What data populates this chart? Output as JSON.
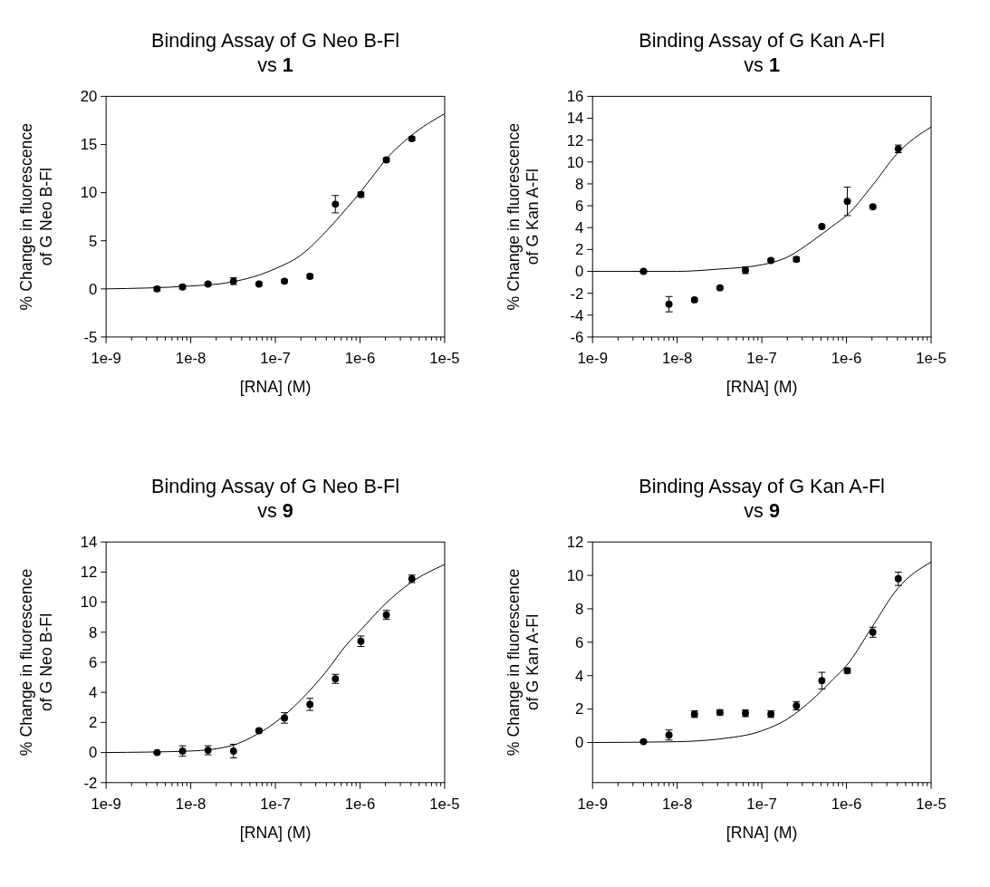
{
  "chart_data": [
    {
      "type": "scatter",
      "title": "Binding Assay of G Neo B-Fl\nvs 1",
      "xlabel": "[RNA] (M)",
      "ylabel": "% Change in fluorescence\nof G Neo B-Fl",
      "log": "x",
      "grid": false,
      "marker": "circle",
      "xlim": [
        1e-09,
        1e-05
      ],
      "ylim": [
        -5,
        20
      ],
      "yticks": [
        -5,
        0,
        5,
        10,
        15,
        20
      ],
      "xticks": [
        {
          "value": 1e-09,
          "label": "1e-9"
        },
        {
          "value": 2e-09,
          "label": null
        },
        {
          "value": 3e-09,
          "label": null
        },
        {
          "value": 4e-09,
          "label": null
        },
        {
          "value": 5e-09,
          "label": null
        },
        {
          "value": 6e-09,
          "label": null
        },
        {
          "value": 7e-09,
          "label": null
        },
        {
          "value": 8e-09,
          "label": null
        },
        {
          "value": 9e-09,
          "label": null
        },
        {
          "value": 1e-08,
          "label": "1e-8"
        },
        {
          "value": 2e-08,
          "label": null
        },
        {
          "value": 3e-08,
          "label": null
        },
        {
          "value": 4e-08,
          "label": null
        },
        {
          "value": 5e-08,
          "label": null
        },
        {
          "value": 6e-08,
          "label": null
        },
        {
          "value": 7e-08,
          "label": null
        },
        {
          "value": 8e-08,
          "label": null
        },
        {
          "value": 9e-08,
          "label": null
        },
        {
          "value": 1e-07,
          "label": "1e-7"
        },
        {
          "value": 2e-07,
          "label": null
        },
        {
          "value": 3e-07,
          "label": null
        },
        {
          "value": 4e-07,
          "label": null
        },
        {
          "value": 5e-07,
          "label": null
        },
        {
          "value": 6e-07,
          "label": null
        },
        {
          "value": 7e-07,
          "label": null
        },
        {
          "value": 8e-07,
          "label": null
        },
        {
          "value": 9e-07,
          "label": null
        },
        {
          "value": 1e-06,
          "label": "1e-6"
        },
        {
          "value": 2e-06,
          "label": null
        },
        {
          "value": 3e-06,
          "label": null
        },
        {
          "value": 4e-06,
          "label": null
        },
        {
          "value": 5e-06,
          "label": null
        },
        {
          "value": 6e-06,
          "label": null
        },
        {
          "value": 7e-06,
          "label": null
        },
        {
          "value": 8e-06,
          "label": null
        },
        {
          "value": 9e-06,
          "label": null
        },
        {
          "value": 1e-05,
          "label": "1e-5"
        }
      ],
      "series": [
        {
          "type": "scatter",
          "color": "#000000",
          "x": [
            4e-09,
            8e-09,
            1.6e-08,
            3.2e-08,
            6.4e-08,
            1.28e-07,
            2.56e-07,
            5.12e-07,
            1.024e-06,
            2.048e-06,
            4.096e-06
          ],
          "values": [
            0,
            0.2,
            0.5,
            0.8,
            0.5,
            0.8,
            1.3,
            8.8,
            9.8,
            13.4,
            15.6
          ],
          "errors": [
            0.2,
            0.2,
            0.15,
            0.35,
            0.15,
            0.15,
            0.2,
            0.9,
            0.25,
            0.2,
            0.2
          ]
        },
        {
          "type": "line",
          "color": "#000000",
          "marker": "none",
          "x": [
            1e-09,
            1e-08,
            3e-08,
            1e-07,
            2e-07,
            4e-07,
            7e-07,
            1e-06,
            1.5e-06,
            2e-06,
            4e-06,
            1e-05
          ],
          "values": [
            0,
            0.3,
            0.7,
            2.1,
            3.5,
            6.0,
            8.4,
            10,
            12,
            13.4,
            15.9,
            18.2
          ]
        }
      ]
    },
    {
      "type": "scatter",
      "title": "Binding Assay of G Kan A-Fl\nvs 1",
      "xlabel": "[RNA] (M)",
      "ylabel": "% Change in fluorescence\nof G Kan A-Fl",
      "log": "x",
      "grid": false,
      "marker": "circle",
      "xlim": [
        1e-09,
        1e-05
      ],
      "ylim": [
        -6,
        16
      ],
      "yticks": [
        -6,
        -4,
        -2,
        0,
        2,
        4,
        6,
        8,
        10,
        12,
        14,
        16
      ],
      "xticks": [
        {
          "value": 1e-09,
          "label": "1e-9"
        },
        {
          "value": 2e-09,
          "label": null
        },
        {
          "value": 3e-09,
          "label": null
        },
        {
          "value": 4e-09,
          "label": null
        },
        {
          "value": 5e-09,
          "label": null
        },
        {
          "value": 6e-09,
          "label": null
        },
        {
          "value": 7e-09,
          "label": null
        },
        {
          "value": 8e-09,
          "label": null
        },
        {
          "value": 9e-09,
          "label": null
        },
        {
          "value": 1e-08,
          "label": "1e-8"
        },
        {
          "value": 2e-08,
          "label": null
        },
        {
          "value": 3e-08,
          "label": null
        },
        {
          "value": 4e-08,
          "label": null
        },
        {
          "value": 5e-08,
          "label": null
        },
        {
          "value": 6e-08,
          "label": null
        },
        {
          "value": 7e-08,
          "label": null
        },
        {
          "value": 8e-08,
          "label": null
        },
        {
          "value": 9e-08,
          "label": null
        },
        {
          "value": 1e-07,
          "label": "1e-7"
        },
        {
          "value": 2e-07,
          "label": null
        },
        {
          "value": 3e-07,
          "label": null
        },
        {
          "value": 4e-07,
          "label": null
        },
        {
          "value": 5e-07,
          "label": null
        },
        {
          "value": 6e-07,
          "label": null
        },
        {
          "value": 7e-07,
          "label": null
        },
        {
          "value": 8e-07,
          "label": null
        },
        {
          "value": 9e-07,
          "label": null
        },
        {
          "value": 1e-06,
          "label": "1e-6"
        },
        {
          "value": 2e-06,
          "label": null
        },
        {
          "value": 3e-06,
          "label": null
        },
        {
          "value": 4e-06,
          "label": null
        },
        {
          "value": 5e-06,
          "label": null
        },
        {
          "value": 6e-06,
          "label": null
        },
        {
          "value": 7e-06,
          "label": null
        },
        {
          "value": 8e-06,
          "label": null
        },
        {
          "value": 9e-06,
          "label": null
        },
        {
          "value": 1e-05,
          "label": "1e-5"
        }
      ],
      "series": [
        {
          "type": "scatter",
          "color": "#000000",
          "x": [
            4e-09,
            8e-09,
            1.6e-08,
            3.2e-08,
            6.4e-08,
            1.28e-07,
            2.56e-07,
            5.12e-07,
            1.024e-06,
            2.048e-06,
            4.096e-06
          ],
          "values": [
            0,
            -3.0,
            -2.6,
            -1.5,
            0.1,
            1.0,
            1.1,
            4.1,
            6.4,
            5.9,
            11.2
          ],
          "errors": [
            0.1,
            0.7,
            0.15,
            0.1,
            0.3,
            0.1,
            0.2,
            0.1,
            1.3,
            0.1,
            0.35
          ]
        },
        {
          "type": "line",
          "color": "#000000",
          "marker": "none",
          "x": [
            1e-09,
            1e-08,
            3e-08,
            1e-07,
            2e-07,
            4e-07,
            7e-07,
            1e-06,
            2e-06,
            4e-06,
            1e-05
          ],
          "values": [
            0,
            0,
            0.2,
            0.6,
            1.3,
            2.8,
            4.2,
            5.1,
            7.8,
            10.8,
            13.2
          ]
        }
      ]
    },
    {
      "type": "scatter",
      "title": "Binding Assay of G Neo B-Fl\nvs 9",
      "xlabel": "[RNA] (M)",
      "ylabel": "% Change in fluorescence\nof G Neo B-Fl",
      "log": "x",
      "grid": false,
      "marker": "circle",
      "xlim": [
        1e-09,
        1e-05
      ],
      "ylim": [
        -2,
        14
      ],
      "yticks": [
        -2,
        0,
        2,
        4,
        6,
        8,
        10,
        12,
        14
      ],
      "xticks": [
        {
          "value": 1e-09,
          "label": "1e-9"
        },
        {
          "value": 2e-09,
          "label": null
        },
        {
          "value": 3e-09,
          "label": null
        },
        {
          "value": 4e-09,
          "label": null
        },
        {
          "value": 5e-09,
          "label": null
        },
        {
          "value": 6e-09,
          "label": null
        },
        {
          "value": 7e-09,
          "label": null
        },
        {
          "value": 8e-09,
          "label": null
        },
        {
          "value": 9e-09,
          "label": null
        },
        {
          "value": 1e-08,
          "label": "1e-8"
        },
        {
          "value": 2e-08,
          "label": null
        },
        {
          "value": 3e-08,
          "label": null
        },
        {
          "value": 4e-08,
          "label": null
        },
        {
          "value": 5e-08,
          "label": null
        },
        {
          "value": 6e-08,
          "label": null
        },
        {
          "value": 7e-08,
          "label": null
        },
        {
          "value": 8e-08,
          "label": null
        },
        {
          "value": 9e-08,
          "label": null
        },
        {
          "value": 1e-07,
          "label": "1e-7"
        },
        {
          "value": 2e-07,
          "label": null
        },
        {
          "value": 3e-07,
          "label": null
        },
        {
          "value": 4e-07,
          "label": null
        },
        {
          "value": 5e-07,
          "label": null
        },
        {
          "value": 6e-07,
          "label": null
        },
        {
          "value": 7e-07,
          "label": null
        },
        {
          "value": 8e-07,
          "label": null
        },
        {
          "value": 9e-07,
          "label": null
        },
        {
          "value": 1e-06,
          "label": "1e-6"
        },
        {
          "value": 2e-06,
          "label": null
        },
        {
          "value": 3e-06,
          "label": null
        },
        {
          "value": 4e-06,
          "label": null
        },
        {
          "value": 5e-06,
          "label": null
        },
        {
          "value": 6e-06,
          "label": null
        },
        {
          "value": 7e-06,
          "label": null
        },
        {
          "value": 8e-06,
          "label": null
        },
        {
          "value": 9e-06,
          "label": null
        },
        {
          "value": 1e-05,
          "label": "1e-5"
        }
      ],
      "series": [
        {
          "type": "scatter",
          "color": "#000000",
          "x": [
            4e-09,
            8e-09,
            1.6e-08,
            3.2e-08,
            6.4e-08,
            1.28e-07,
            2.56e-07,
            5.12e-07,
            1.024e-06,
            2.048e-06,
            4.096e-06
          ],
          "values": [
            0.0,
            0.1,
            0.15,
            0.1,
            1.45,
            2.3,
            3.2,
            4.9,
            7.4,
            9.15,
            11.55
          ],
          "errors": [
            0.05,
            0.35,
            0.3,
            0.45,
            0.1,
            0.35,
            0.4,
            0.3,
            0.35,
            0.3,
            0.25
          ]
        },
        {
          "type": "line",
          "color": "#000000",
          "marker": "none",
          "x": [
            1e-09,
            1e-08,
            3e-08,
            6e-08,
            1e-07,
            2e-07,
            4e-07,
            7e-07,
            1e-06,
            2e-06,
            4e-06,
            1e-05
          ],
          "values": [
            0,
            0.1,
            0.45,
            1.2,
            2.0,
            3.5,
            5.4,
            7.2,
            8.1,
            9.9,
            11.3,
            12.5
          ]
        }
      ]
    },
    {
      "type": "scatter",
      "title": "Binding Assay of G Kan A-Fl\nvs 9",
      "xlabel": "[RNA] (M)",
      "ylabel": "% Change in fluorescence\nof G Kan A-Fl",
      "log": "x",
      "grid": false,
      "marker": "circle",
      "xlim": [
        1e-09,
        1e-05
      ],
      "ylim": [
        -2.4,
        12
      ],
      "yticks": [
        0,
        2,
        4,
        6,
        8,
        10,
        12
      ],
      "xticks": [
        {
          "value": 1e-09,
          "label": "1e-9"
        },
        {
          "value": 2e-09,
          "label": null
        },
        {
          "value": 3e-09,
          "label": null
        },
        {
          "value": 4e-09,
          "label": null
        },
        {
          "value": 5e-09,
          "label": null
        },
        {
          "value": 6e-09,
          "label": null
        },
        {
          "value": 7e-09,
          "label": null
        },
        {
          "value": 8e-09,
          "label": null
        },
        {
          "value": 9e-09,
          "label": null
        },
        {
          "value": 1e-08,
          "label": "1e-8"
        },
        {
          "value": 2e-08,
          "label": null
        },
        {
          "value": 3e-08,
          "label": null
        },
        {
          "value": 4e-08,
          "label": null
        },
        {
          "value": 5e-08,
          "label": null
        },
        {
          "value": 6e-08,
          "label": null
        },
        {
          "value": 7e-08,
          "label": null
        },
        {
          "value": 8e-08,
          "label": null
        },
        {
          "value": 9e-08,
          "label": null
        },
        {
          "value": 1e-07,
          "label": "1e-7"
        },
        {
          "value": 2e-07,
          "label": null
        },
        {
          "value": 3e-07,
          "label": null
        },
        {
          "value": 4e-07,
          "label": null
        },
        {
          "value": 5e-07,
          "label": null
        },
        {
          "value": 6e-07,
          "label": null
        },
        {
          "value": 7e-07,
          "label": null
        },
        {
          "value": 8e-07,
          "label": null
        },
        {
          "value": 9e-07,
          "label": null
        },
        {
          "value": 1e-06,
          "label": "1e-6"
        },
        {
          "value": 2e-06,
          "label": null
        },
        {
          "value": 3e-06,
          "label": null
        },
        {
          "value": 4e-06,
          "label": null
        },
        {
          "value": 5e-06,
          "label": null
        },
        {
          "value": 6e-06,
          "label": null
        },
        {
          "value": 7e-06,
          "label": null
        },
        {
          "value": 8e-06,
          "label": null
        },
        {
          "value": 9e-06,
          "label": null
        },
        {
          "value": 1e-05,
          "label": "1e-5"
        }
      ],
      "series": [
        {
          "type": "scatter",
          "color": "#000000",
          "x": [
            4e-09,
            8e-09,
            1.6e-08,
            3.2e-08,
            6.4e-08,
            1.28e-07,
            2.56e-07,
            5.12e-07,
            1.024e-06,
            2.048e-06,
            4.096e-06
          ],
          "values": [
            0.05,
            0.45,
            1.7,
            1.8,
            1.75,
            1.7,
            2.2,
            3.7,
            4.3,
            6.6,
            9.8
          ],
          "errors": [
            0.05,
            0.3,
            0.2,
            0.15,
            0.2,
            0.2,
            0.25,
            0.5,
            0.15,
            0.3,
            0.4
          ]
        },
        {
          "type": "line",
          "color": "#000000",
          "marker": "none",
          "x": [
            1e-09,
            1e-08,
            3e-08,
            1e-07,
            2e-07,
            4e-07,
            7e-07,
            1e-06,
            2e-06,
            4e-06,
            1e-05
          ],
          "values": [
            0,
            0.05,
            0.2,
            0.7,
            1.4,
            2.6,
            3.8,
            4.6,
            6.9,
            9.2,
            10.8
          ]
        }
      ]
    }
  ]
}
